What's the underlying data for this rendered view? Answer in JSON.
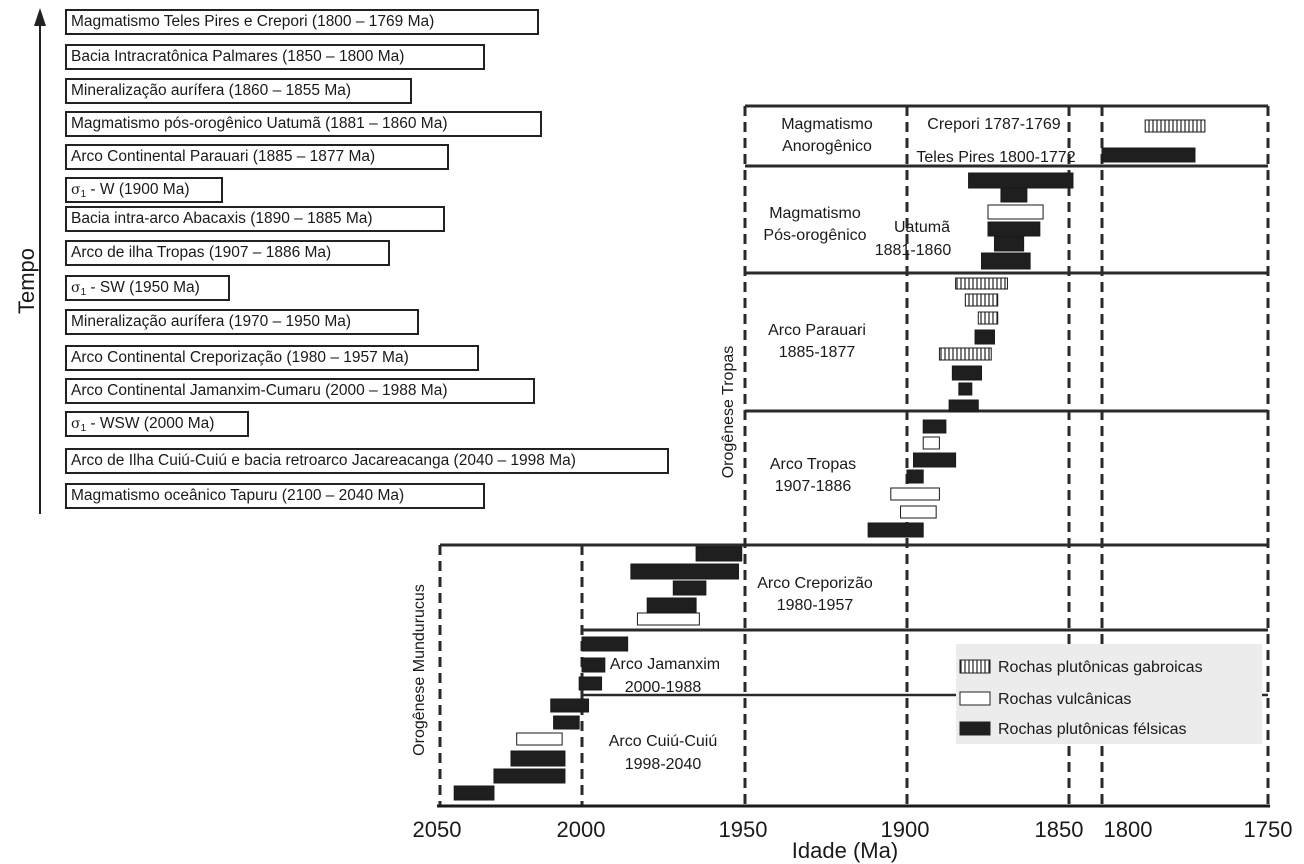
{
  "time_axis_label": "Tempo",
  "events": [
    {
      "text": "Magmatismo Teles Pires e Crepori (1800 – 1769 Ma)"
    },
    {
      "text": "Bacia Intracratônica Palmares (1850 – 1800 Ma)"
    },
    {
      "text": "Mineralização aurífera (1860 – 1855 Ma)"
    },
    {
      "text": "Magmatismo pós-orogênico Uatumã (1881 – 1860 Ma)"
    },
    {
      "text": "Arco Continental Parauari (1885 – 1877 Ma)"
    },
    {
      "sigma": "σ",
      "sub": "1",
      "text": " - W (1900 Ma)"
    },
    {
      "text": "Bacia intra-arco Abacaxis (1890 – 1885 Ma)"
    },
    {
      "text": "Arco de ilha Tropas (1907 – 1886 Ma)"
    },
    {
      "sigma": "σ",
      "sub": "1",
      "text": " - SW (1950 Ma)"
    },
    {
      "text": "Mineralização aurífera (1970 – 1950 Ma)"
    },
    {
      "text": "Arco Continental Creporização (1980 – 1957 Ma)"
    },
    {
      "text": "Arco Continental Jamanxim-Cumaru (2000 – 1988 Ma)"
    },
    {
      "sigma": "σ",
      "sub": "1",
      "text": " - WSW (2000 Ma)"
    },
    {
      "text": "Arco de Ilha Cuiú-Cuiú e bacia retroarco Jacareacanga (2040 – 1998 Ma)"
    },
    {
      "text": "Magmatismo oceânico Tapuru (2100 – 2040 Ma)"
    }
  ],
  "chart": {
    "xlabel": "Idade (Ma)",
    "ticks": [
      "2050",
      "2000",
      "1950",
      "1900",
      "1850",
      "1800",
      "1750"
    ],
    "orogens": [
      {
        "id": "tropas",
        "name": "Orogênese Tropas"
      },
      {
        "id": "mundurucus",
        "name": "Orogênese Mundurucus"
      }
    ],
    "groups": [
      {
        "id": "anorog",
        "lines": [
          "Magmatismo",
          "Anorogênico"
        ]
      },
      {
        "id": "crepori",
        "lines": [
          "Crepori 1787-1769"
        ]
      },
      {
        "id": "telespires",
        "lines": [
          "Teles Pires 1800-1772"
        ]
      },
      {
        "id": "posorog",
        "lines": [
          "Magmatismo",
          "Pós-orogênico"
        ]
      },
      {
        "id": "uatuma",
        "lines": [
          "Uatumã",
          "1881-1860"
        ]
      },
      {
        "id": "parauari",
        "lines": [
          "Arco Parauari",
          "1885-1877"
        ]
      },
      {
        "id": "tropas",
        "lines": [
          "Arco Tropas",
          "1907-1886"
        ]
      },
      {
        "id": "creporizao",
        "lines": [
          "Arco Creporizão",
          "1980-1957"
        ]
      },
      {
        "id": "jamanxim",
        "lines": [
          "Arco Jamanxim",
          "2000-1988"
        ]
      },
      {
        "id": "cuiu",
        "lines": [
          "Arco Cuiú-Cuiú",
          "1998-2040"
        ]
      }
    ],
    "legend": [
      {
        "kind": "gabbro",
        "label": "Rochas plutônicas gabroicas"
      },
      {
        "kind": "volcanic",
        "label": "Rochas vulcânicas"
      },
      {
        "kind": "felsic",
        "label": "Rochas plutônicas félsicas"
      }
    ]
  },
  "chart_data": {
    "type": "range-bar",
    "x_axis": {
      "label": "Idade (Ma)",
      "reversed": true,
      "ticks": [
        2050,
        2000,
        1950,
        1900,
        1850,
        1800,
        1750
      ]
    },
    "rock_types": [
      "Rochas plutônicas gabroicas",
      "Rochas vulcânicas",
      "Rochas plutônicas félsicas"
    ],
    "ranges_ma": [
      {
        "group": "Magmatismo Anorogênico",
        "type": "Rochas plutônicas gabroicas",
        "start": 1787,
        "end": 1769
      },
      {
        "group": "Magmatismo Anorogênico",
        "type": "Rochas plutônicas félsicas",
        "start": 1800,
        "end": 1772
      },
      {
        "group": "Magmatismo Pós-orogênico",
        "type": "Rochas plutônicas félsicas",
        "start": 1881,
        "end": 1844
      },
      {
        "group": "Magmatismo Pós-orogênico",
        "type": "Rochas plutônicas félsicas",
        "start": 1871,
        "end": 1863
      },
      {
        "group": "Magmatismo Pós-orogênico",
        "type": "Rochas vulcânicas",
        "start": 1875,
        "end": 1858
      },
      {
        "group": "Magmatismo Pós-orogênico",
        "type": "Rochas plutônicas félsicas",
        "start": 1875,
        "end": 1859
      },
      {
        "group": "Magmatismo Pós-orogênico",
        "type": "Rochas plutônicas félsicas",
        "start": 1873,
        "end": 1864
      },
      {
        "group": "Magmatismo Pós-orogênico",
        "type": "Rochas plutônicas félsicas",
        "start": 1877,
        "end": 1862
      },
      {
        "group": "Arco Parauari",
        "type": "Rochas plutônicas gabroicas",
        "start": 1885,
        "end": 1869
      },
      {
        "group": "Arco Parauari",
        "type": "Rochas plutônicas gabroicas",
        "start": 1882,
        "end": 1872
      },
      {
        "group": "Arco Parauari",
        "type": "Rochas plutônicas gabroicas",
        "start": 1878,
        "end": 1872
      },
      {
        "group": "Arco Parauari",
        "type": "Rochas plutônicas félsicas",
        "start": 1879,
        "end": 1873
      },
      {
        "group": "Arco Parauari",
        "type": "Rochas plutônicas gabroicas",
        "start": 1890,
        "end": 1874
      },
      {
        "group": "Arco Parauari",
        "type": "Rochas plutônicas félsicas",
        "start": 1886,
        "end": 1877
      },
      {
        "group": "Arco Parauari",
        "type": "Rochas plutônicas félsicas",
        "start": 1884,
        "end": 1880
      },
      {
        "group": "Arco Parauari",
        "type": "Rochas plutônicas félsicas",
        "start": 1887,
        "end": 1878
      },
      {
        "group": "Arco Tropas",
        "type": "Rochas plutônicas félsicas",
        "start": 1895,
        "end": 1888
      },
      {
        "group": "Arco Tropas",
        "type": "Rochas vulcânicas",
        "start": 1895,
        "end": 1890
      },
      {
        "group": "Arco Tropas",
        "type": "Rochas plutônicas félsicas",
        "start": 1898,
        "end": 1885
      },
      {
        "group": "Arco Tropas",
        "type": "Rochas plutônicas félsicas",
        "start": 1900,
        "end": 1895
      },
      {
        "group": "Arco Tropas",
        "type": "Rochas vulcânicas",
        "start": 1905,
        "end": 1890
      },
      {
        "group": "Arco Tropas",
        "type": "Rochas vulcânicas",
        "start": 1902,
        "end": 1891
      },
      {
        "group": "Arco Tropas",
        "type": "Rochas plutônicas félsicas",
        "start": 1912,
        "end": 1895
      },
      {
        "group": "Arco Creporizão",
        "type": "Rochas plutônicas félsicas",
        "start": 1965,
        "end": 1951
      },
      {
        "group": "Arco Creporizão",
        "type": "Rochas plutônicas félsicas",
        "start": 1985,
        "end": 1952
      },
      {
        "group": "Arco Creporizão",
        "type": "Rochas plutônicas félsicas",
        "start": 1972,
        "end": 1962
      },
      {
        "group": "Arco Creporizão",
        "type": "Rochas plutônicas félsicas",
        "start": 1980,
        "end": 1965
      },
      {
        "group": "Arco Creporizão",
        "type": "Rochas vulcânicas",
        "start": 1983,
        "end": 1964
      },
      {
        "group": "Arco Jamanxim",
        "type": "Rochas plutônicas félsicas",
        "start": 2000,
        "end": 1986
      },
      {
        "group": "Arco Jamanxim",
        "type": "Rochas plutônicas félsicas",
        "start": 2000,
        "end": 1993
      },
      {
        "group": "Arco Jamanxim",
        "type": "Rochas plutônicas félsicas",
        "start": 2001,
        "end": 1994
      },
      {
        "group": "Arco Cuiú-Cuiú",
        "type": "Rochas plutônicas félsicas",
        "start": 2011,
        "end": 1998
      },
      {
        "group": "Arco Cuiú-Cuiú",
        "type": "Rochas plutônicas félsicas",
        "start": 2010,
        "end": 2001
      },
      {
        "group": "Arco Cuiú-Cuiú",
        "type": "Rochas vulcânicas",
        "start": 2023,
        "end": 2007
      },
      {
        "group": "Arco Cuiú-Cuiú",
        "type": "Rochas plutônicas félsicas",
        "start": 2025,
        "end": 2006
      },
      {
        "group": "Arco Cuiú-Cuiú",
        "type": "Rochas plutônicas félsicas",
        "start": 2031,
        "end": 2006
      },
      {
        "group": "Arco Cuiú-Cuiú",
        "type": "Rochas plutônicas félsicas",
        "start": 2045,
        "end": 2031
      }
    ]
  }
}
